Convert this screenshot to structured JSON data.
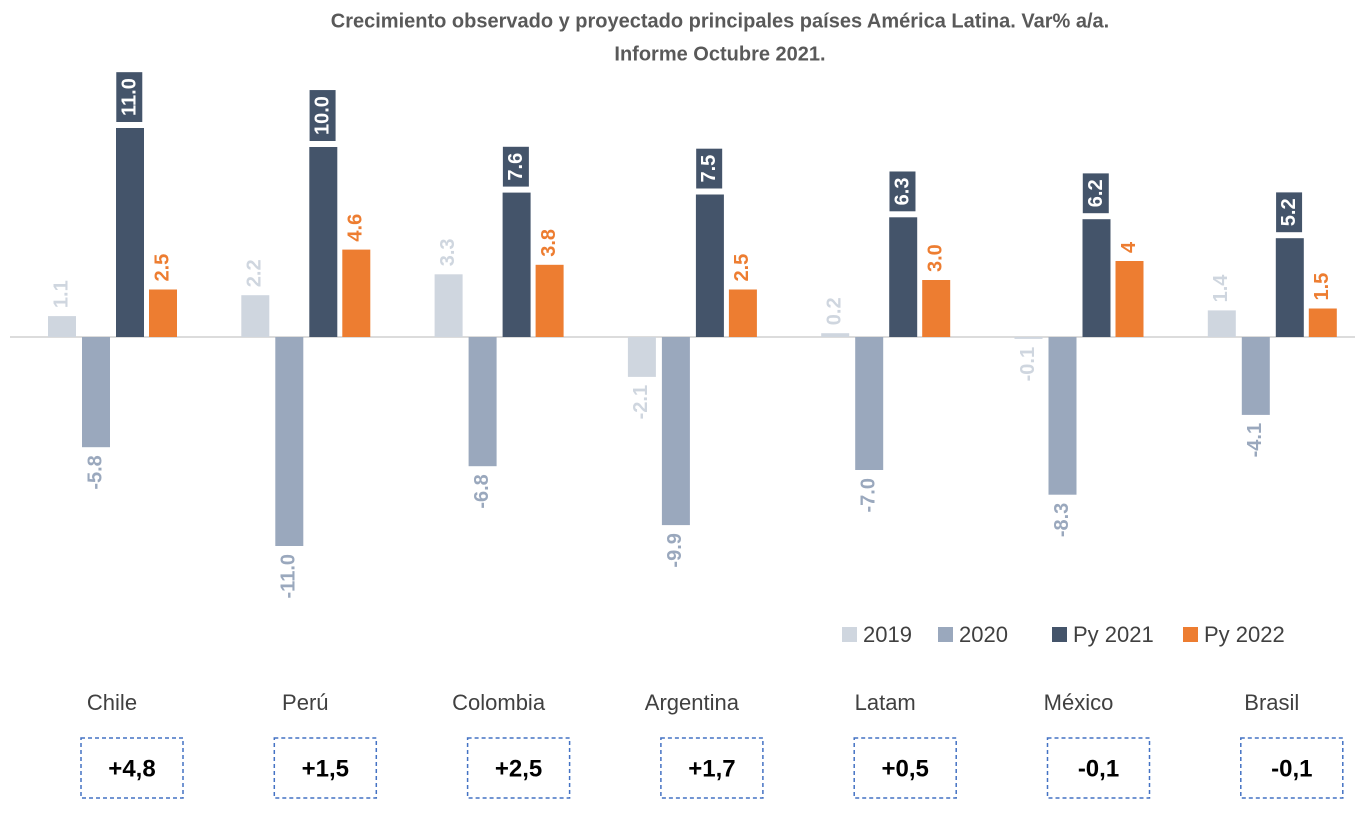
{
  "chart_data": {
    "type": "bar",
    "title": [
      "Crecimiento observado y proyectado principales países América Latina. Var% a/a.",
      "Informe Octubre 2021."
    ],
    "categories": [
      "Chile",
      "Perú",
      "Colombia",
      "Argentina",
      "Latam",
      "México",
      "Brasil"
    ],
    "series": [
      {
        "name": "2019",
        "color": "#cfd6df",
        "values": [
          1.1,
          2.2,
          3.3,
          -2.1,
          0.2,
          -0.1,
          1.4
        ],
        "value_labels": [
          "1.1",
          "2.2",
          "3.3",
          "-2.1",
          "0.2",
          "-0.1",
          "1.4"
        ]
      },
      {
        "name": "2020",
        "color": "#9aa8bd",
        "values": [
          -5.8,
          -11.0,
          -6.8,
          -9.9,
          -7.0,
          -8.3,
          -4.1
        ],
        "value_labels": [
          "-5.8",
          "-11.0",
          "-6.8",
          "-9.9",
          "-7.0",
          "-8.3",
          "-4.1"
        ]
      },
      {
        "name": "Py 2021",
        "color": "#44546a",
        "values": [
          11.0,
          10.0,
          7.6,
          7.5,
          6.3,
          6.2,
          5.2
        ],
        "value_labels": [
          "11.0",
          "10.0",
          "7.6",
          "7.5",
          "6.3",
          "6.2",
          "5.2"
        ]
      },
      {
        "name": "Py 2022",
        "color": "#ed7d31",
        "values": [
          2.5,
          4.6,
          3.8,
          2.5,
          3.0,
          4,
          1.5
        ],
        "value_labels": [
          "2.5",
          "4.6",
          "3.8",
          "2.5",
          "3.0",
          "4",
          "1.5"
        ]
      }
    ],
    "annotations": [
      "+4,8",
      "+1,5",
      "+2,5",
      "+1,7",
      "+0,5",
      "-0,1",
      "-0,1"
    ]
  }
}
